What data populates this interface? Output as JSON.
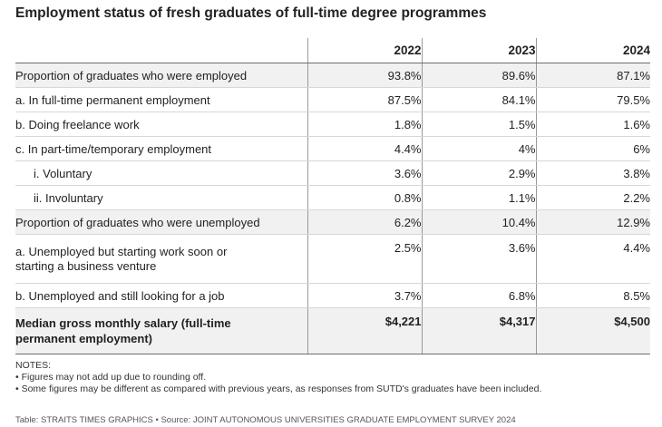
{
  "chart_data": {
    "type": "table",
    "title": "Employment status of fresh graduates of full-time degree programmes",
    "columns": [
      "2022",
      "2023",
      "2024"
    ],
    "rows": [
      {
        "label": "Proportion of graduates who were employed",
        "values": [
          "93.8%",
          "89.6%",
          "87.1%"
        ]
      },
      {
        "label": "a. In full-time permanent employment",
        "values": [
          "87.5%",
          "84.1%",
          "79.5%"
        ]
      },
      {
        "label": "b. Doing freelance work",
        "values": [
          "1.8%",
          "1.5%",
          "1.6%"
        ]
      },
      {
        "label": "c. In part-time/temporary employment",
        "values": [
          "4.4%",
          "4%",
          "6%"
        ]
      },
      {
        "label": "i. Voluntary",
        "values": [
          "3.6%",
          "2.9%",
          "3.8%"
        ]
      },
      {
        "label": "ii. Involuntary",
        "values": [
          "0.8%",
          "1.1%",
          "2.2%"
        ]
      },
      {
        "label": "Proportion of graduates who were unemployed",
        "values": [
          "6.2%",
          "10.4%",
          "12.9%"
        ]
      },
      {
        "label_line1": "a. Unemployed but starting work soon or",
        "label_line2": "starting a business venture",
        "values": [
          "2.5%",
          "3.6%",
          "4.4%"
        ]
      },
      {
        "label": "b. Unemployed and still looking for a job",
        "values": [
          "3.7%",
          "6.8%",
          "8.5%"
        ]
      },
      {
        "label_line1": "Median gross monthly salary (full-time",
        "label_line2": "permanent employment)",
        "values": [
          "$4,221",
          "$4,317",
          "$4,500"
        ]
      }
    ],
    "notes": {
      "heading": "NOTES:",
      "items": [
        "• Figures may not add up due to rounding off.",
        "• Some figures may be different as compared with previous years, as responses from SUTD's graduates have been included."
      ]
    },
    "source": "Table: STRAITS TIMES GRAPHICS • Source: JOINT AUTONOMOUS UNIVERSITIES GRADUATE EMPLOYMENT SURVEY 2024"
  }
}
